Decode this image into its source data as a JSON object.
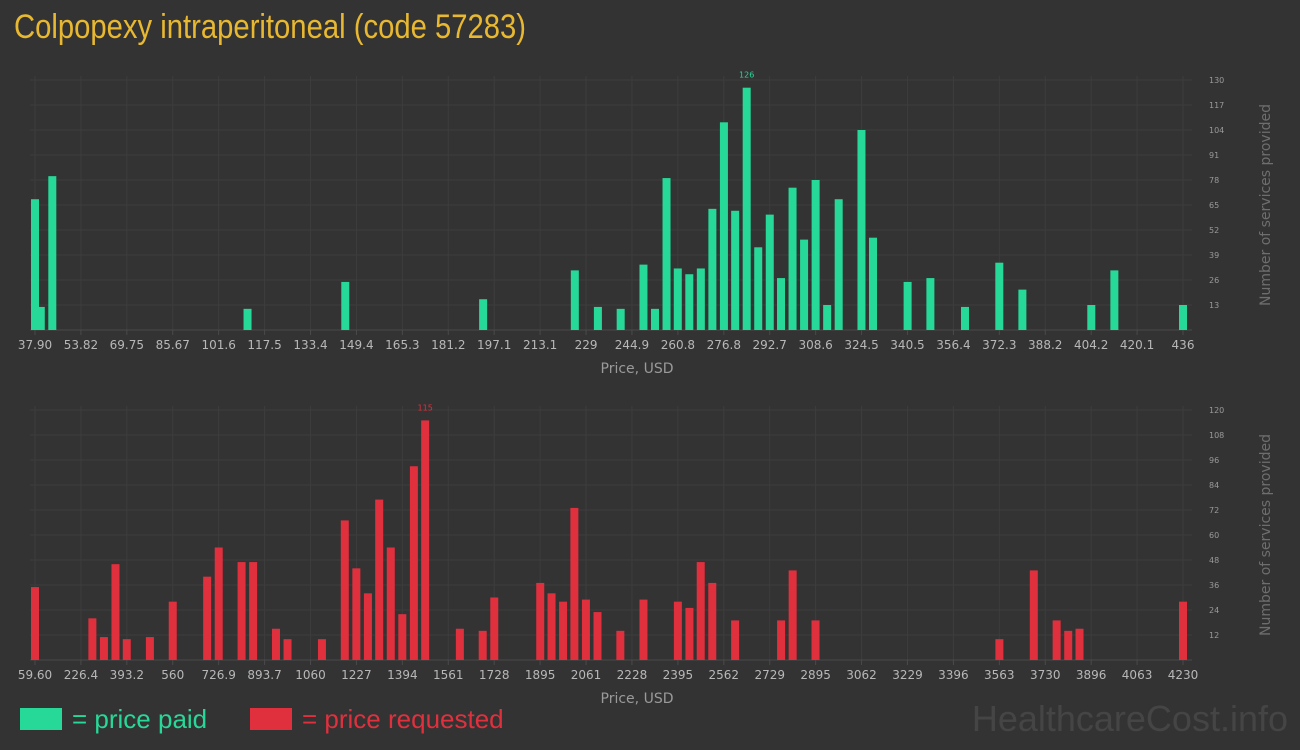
{
  "title": "Colpopexy intraperitoneal (code 57283)",
  "colors": {
    "title": "#e8b830",
    "paid": "#27d999",
    "requested": "#e0303e",
    "background": "#333333"
  },
  "legend": {
    "paid_label": "= price paid",
    "requested_label": "= price requested"
  },
  "watermark": "HealthcareCost.info",
  "chart_data": [
    {
      "type": "bar",
      "name": "price-paid",
      "xlabel": "Price, USD",
      "ylabel": "Number of services provided",
      "x_ticks": [
        "37.90",
        "53.82",
        "69.75",
        "85.67",
        "101.6",
        "117.5",
        "133.4",
        "149.4",
        "165.3",
        "181.2",
        "197.1",
        "213.1",
        "229",
        "244.9",
        "260.8",
        "276.8",
        "292.7",
        "308.6",
        "324.5",
        "340.5",
        "356.4",
        "372.3",
        "388.2",
        "404.2",
        "420.1",
        "436"
      ],
      "y_ticks": [
        13,
        26,
        39,
        52,
        65,
        78,
        91,
        104,
        117,
        130
      ],
      "ylim": [
        0,
        130
      ],
      "xlim": [
        37.9,
        436
      ],
      "peak_label": "126",
      "bars": [
        {
          "x": 37.9,
          "y": 68
        },
        {
          "x": 39.9,
          "y": 12
        },
        {
          "x": 43.9,
          "y": 80
        },
        {
          "x": 111.6,
          "y": 11
        },
        {
          "x": 145.5,
          "y": 25
        },
        {
          "x": 193.3,
          "y": 16
        },
        {
          "x": 225.1,
          "y": 31
        },
        {
          "x": 233.1,
          "y": 12
        },
        {
          "x": 241.0,
          "y": 11
        },
        {
          "x": 248.9,
          "y": 34
        },
        {
          "x": 252.9,
          "y": 11
        },
        {
          "x": 256.9,
          "y": 79
        },
        {
          "x": 260.8,
          "y": 32
        },
        {
          "x": 264.8,
          "y": 29
        },
        {
          "x": 268.8,
          "y": 32
        },
        {
          "x": 272.8,
          "y": 63
        },
        {
          "x": 276.8,
          "y": 108
        },
        {
          "x": 280.7,
          "y": 62
        },
        {
          "x": 284.7,
          "y": 126
        },
        {
          "x": 288.7,
          "y": 43
        },
        {
          "x": 292.7,
          "y": 60
        },
        {
          "x": 296.6,
          "y": 27
        },
        {
          "x": 300.6,
          "y": 74
        },
        {
          "x": 304.6,
          "y": 47
        },
        {
          "x": 308.6,
          "y": 78
        },
        {
          "x": 312.6,
          "y": 13
        },
        {
          "x": 316.6,
          "y": 68
        },
        {
          "x": 324.5,
          "y": 104
        },
        {
          "x": 328.5,
          "y": 48
        },
        {
          "x": 340.5,
          "y": 25
        },
        {
          "x": 348.4,
          "y": 27
        },
        {
          "x": 360.4,
          "y": 12
        },
        {
          "x": 372.3,
          "y": 35
        },
        {
          "x": 380.3,
          "y": 21
        },
        {
          "x": 404.2,
          "y": 13
        },
        {
          "x": 412.2,
          "y": 31
        },
        {
          "x": 436,
          "y": 13
        }
      ]
    },
    {
      "type": "bar",
      "name": "price-requested",
      "xlabel": "Price, USD",
      "ylabel": "Number of services provided",
      "x_ticks": [
        "59.60",
        "226.4",
        "393.2",
        "560",
        "726.9",
        "893.7",
        "1060",
        "1227",
        "1394",
        "1561",
        "1728",
        "1895",
        "2061",
        "2228",
        "2395",
        "2562",
        "2729",
        "2895",
        "3062",
        "3229",
        "3396",
        "3563",
        "3730",
        "3896",
        "4063",
        "4230"
      ],
      "y_ticks": [
        12,
        24,
        36,
        48,
        60,
        72,
        84,
        96,
        108,
        120
      ],
      "ylim": [
        0,
        120
      ],
      "xlim": [
        59.6,
        4230
      ],
      "peak_label": "115",
      "bars": [
        {
          "x": 59.6,
          "y": 35
        },
        {
          "x": 268,
          "y": 20
        },
        {
          "x": 310,
          "y": 11
        },
        {
          "x": 352,
          "y": 46
        },
        {
          "x": 393,
          "y": 10
        },
        {
          "x": 477,
          "y": 11
        },
        {
          "x": 560,
          "y": 28
        },
        {
          "x": 685,
          "y": 40
        },
        {
          "x": 727,
          "y": 54
        },
        {
          "x": 810,
          "y": 47
        },
        {
          "x": 852,
          "y": 47
        },
        {
          "x": 935,
          "y": 15
        },
        {
          "x": 977,
          "y": 10
        },
        {
          "x": 1102,
          "y": 10
        },
        {
          "x": 1185,
          "y": 67
        },
        {
          "x": 1227,
          "y": 44
        },
        {
          "x": 1269,
          "y": 32
        },
        {
          "x": 1310,
          "y": 77
        },
        {
          "x": 1352,
          "y": 54
        },
        {
          "x": 1394,
          "y": 22
        },
        {
          "x": 1436,
          "y": 93
        },
        {
          "x": 1477,
          "y": 115
        },
        {
          "x": 1603,
          "y": 15
        },
        {
          "x": 1686,
          "y": 14
        },
        {
          "x": 1728,
          "y": 30
        },
        {
          "x": 1895,
          "y": 37
        },
        {
          "x": 1936,
          "y": 32
        },
        {
          "x": 1978,
          "y": 28
        },
        {
          "x": 2019,
          "y": 73
        },
        {
          "x": 2061,
          "y": 29
        },
        {
          "x": 2103,
          "y": 23
        },
        {
          "x": 2186,
          "y": 14
        },
        {
          "x": 2270,
          "y": 29
        },
        {
          "x": 2395,
          "y": 28
        },
        {
          "x": 2437,
          "y": 25
        },
        {
          "x": 2478,
          "y": 47
        },
        {
          "x": 2520,
          "y": 37
        },
        {
          "x": 2603,
          "y": 19
        },
        {
          "x": 2770,
          "y": 19
        },
        {
          "x": 2812,
          "y": 43
        },
        {
          "x": 2895,
          "y": 19
        },
        {
          "x": 3563,
          "y": 10
        },
        {
          "x": 3688,
          "y": 43
        },
        {
          "x": 3771,
          "y": 19
        },
        {
          "x": 3813,
          "y": 14
        },
        {
          "x": 3854,
          "y": 15
        },
        {
          "x": 4230,
          "y": 28
        }
      ]
    }
  ]
}
